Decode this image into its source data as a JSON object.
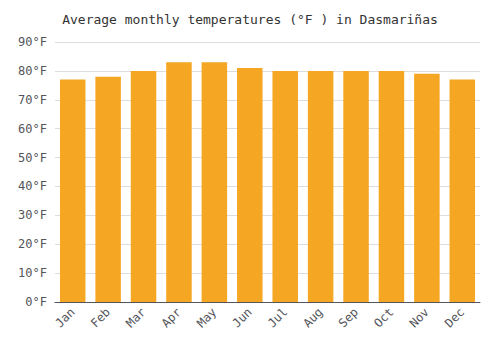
{
  "chart_data": {
    "type": "bar",
    "title": "Average monthly temperatures (°F ) in Dasmariñas",
    "categories": [
      "Jan",
      "Feb",
      "Mar",
      "Apr",
      "May",
      "Jun",
      "Jul",
      "Aug",
      "Sep",
      "Oct",
      "Nov",
      "Dec"
    ],
    "values": [
      77,
      78,
      80,
      83,
      83,
      81,
      80,
      80,
      80,
      80,
      79,
      77
    ],
    "color": "#F5A623",
    "ylim": [
      0,
      90
    ],
    "yticks": [
      {
        "value": 0,
        "label": "0°F"
      },
      {
        "value": 10,
        "label": "10°F"
      },
      {
        "value": 20,
        "label": "20°F"
      },
      {
        "value": 30,
        "label": "30°F"
      },
      {
        "value": 40,
        "label": "40°F"
      },
      {
        "value": 50,
        "label": "50°F"
      },
      {
        "value": 60,
        "label": "60°F"
      },
      {
        "value": 70,
        "label": "70°F"
      },
      {
        "value": 80,
        "label": "80°F"
      },
      {
        "value": 90,
        "label": "90°F"
      }
    ],
    "grid": true
  }
}
